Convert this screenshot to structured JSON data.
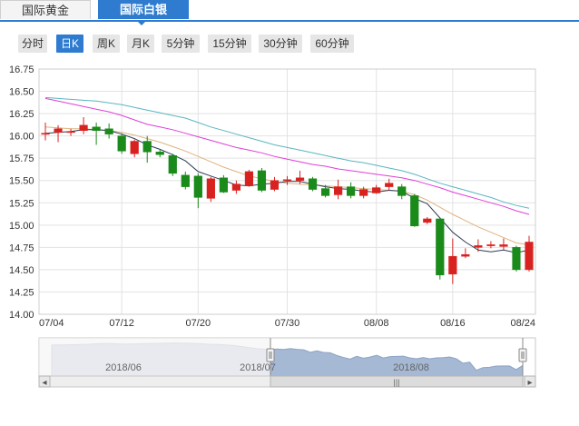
{
  "tabs": [
    {
      "label": "国际黄金",
      "active": false
    },
    {
      "label": "国际白银",
      "active": true
    }
  ],
  "periods": [
    {
      "label": "分时",
      "active": false
    },
    {
      "label": "日K",
      "active": true
    },
    {
      "label": "周K",
      "active": false
    },
    {
      "label": "月K",
      "active": false
    },
    {
      "label": "5分钟",
      "active": false
    },
    {
      "label": "15分钟",
      "active": false
    },
    {
      "label": "30分钟",
      "active": false
    },
    {
      "label": "60分钟",
      "active": false
    }
  ],
  "colors": {
    "up": "#d8221f",
    "down": "#1a8a1a",
    "ma5": "#2b3d57",
    "ma10": "#e0b27f",
    "ma20": "#e03fd8",
    "ma30": "#5ab6c0",
    "accent": "#2e7bcf"
  },
  "chart_data": {
    "type": "candlestick",
    "ylim": [
      14.0,
      16.75
    ],
    "y_ticks": [
      "16.75",
      "16.50",
      "16.25",
      "16.00",
      "15.75",
      "15.50",
      "15.25",
      "15.00",
      "14.75",
      "14.50",
      "14.25",
      "14.00"
    ],
    "x_ticks": [
      "07/04",
      "07/12",
      "07/20",
      "07/30",
      "08/08",
      "08/16",
      "08/24"
    ],
    "grid": true,
    "candles": [
      {
        "o": 16.02,
        "c": 16.03,
        "h": 16.15,
        "l": 15.95
      },
      {
        "o": 16.04,
        "c": 16.08,
        "h": 16.12,
        "l": 15.93
      },
      {
        "o": 16.04,
        "c": 16.05,
        "h": 16.08,
        "l": 16.0
      },
      {
        "o": 16.06,
        "c": 16.12,
        "h": 16.21,
        "l": 16.02
      },
      {
        "o": 16.1,
        "c": 16.06,
        "h": 16.15,
        "l": 15.9
      },
      {
        "o": 16.08,
        "c": 16.02,
        "h": 16.14,
        "l": 15.97
      },
      {
        "o": 16.0,
        "c": 15.83,
        "h": 16.03,
        "l": 15.8
      },
      {
        "o": 15.8,
        "c": 15.94,
        "h": 15.96,
        "l": 15.76
      },
      {
        "o": 15.94,
        "c": 15.82,
        "h": 16.0,
        "l": 15.7
      },
      {
        "o": 15.82,
        "c": 15.79,
        "h": 15.85,
        "l": 15.76
      },
      {
        "o": 15.78,
        "c": 15.58,
        "h": 15.8,
        "l": 15.55
      },
      {
        "o": 15.56,
        "c": 15.43,
        "h": 15.6,
        "l": 15.4
      },
      {
        "o": 15.55,
        "c": 15.31,
        "h": 15.58,
        "l": 15.19
      },
      {
        "o": 15.3,
        "c": 15.52,
        "h": 15.54,
        "l": 15.26
      },
      {
        "o": 15.53,
        "c": 15.37,
        "h": 15.56,
        "l": 15.36
      },
      {
        "o": 15.39,
        "c": 15.46,
        "h": 15.5,
        "l": 15.35
      },
      {
        "o": 15.44,
        "c": 15.6,
        "h": 15.62,
        "l": 15.43
      },
      {
        "o": 15.61,
        "c": 15.39,
        "h": 15.64,
        "l": 15.37
      },
      {
        "o": 15.4,
        "c": 15.5,
        "h": 15.54,
        "l": 15.38
      },
      {
        "o": 15.5,
        "c": 15.51,
        "h": 15.55,
        "l": 15.45
      },
      {
        "o": 15.5,
        "c": 15.53,
        "h": 15.61,
        "l": 15.46
      },
      {
        "o": 15.52,
        "c": 15.4,
        "h": 15.54,
        "l": 15.38
      },
      {
        "o": 15.41,
        "c": 15.33,
        "h": 15.45,
        "l": 15.31
      },
      {
        "o": 15.34,
        "c": 15.43,
        "h": 15.51,
        "l": 15.29
      },
      {
        "o": 15.43,
        "c": 15.33,
        "h": 15.48,
        "l": 15.3
      },
      {
        "o": 15.33,
        "c": 15.4,
        "h": 15.43,
        "l": 15.3
      },
      {
        "o": 15.36,
        "c": 15.42,
        "h": 15.45,
        "l": 15.35
      },
      {
        "o": 15.43,
        "c": 15.47,
        "h": 15.52,
        "l": 15.39
      },
      {
        "o": 15.43,
        "c": 15.33,
        "h": 15.46,
        "l": 15.29
      },
      {
        "o": 15.33,
        "c": 14.99,
        "h": 15.35,
        "l": 14.98
      },
      {
        "o": 15.03,
        "c": 15.07,
        "h": 15.09,
        "l": 15.01
      },
      {
        "o": 15.07,
        "c": 14.44,
        "h": 15.08,
        "l": 14.39
      },
      {
        "o": 14.45,
        "c": 14.65,
        "h": 14.85,
        "l": 14.34
      },
      {
        "o": 14.65,
        "c": 14.67,
        "h": 14.74,
        "l": 14.63
      },
      {
        "o": 14.75,
        "c": 14.77,
        "h": 14.84,
        "l": 14.7
      },
      {
        "o": 14.77,
        "c": 14.78,
        "h": 14.82,
        "l": 14.74
      },
      {
        "o": 14.76,
        "c": 14.78,
        "h": 14.85,
        "l": 14.72
      },
      {
        "o": 14.75,
        "c": 14.5,
        "h": 14.77,
        "l": 14.48
      },
      {
        "o": 14.5,
        "c": 14.81,
        "h": 14.88,
        "l": 14.48
      }
    ],
    "ma5": [
      16.03,
      16.04,
      16.05,
      16.07,
      16.07,
      16.06,
      16.02,
      15.97,
      15.9,
      15.85,
      15.79,
      15.72,
      15.6,
      15.55,
      15.5,
      15.45,
      15.44,
      15.46,
      15.47,
      15.49,
      15.49,
      15.46,
      15.43,
      15.41,
      15.4,
      15.38,
      15.37,
      15.39,
      15.38,
      15.3,
      15.24,
      15.08,
      14.92,
      14.81,
      14.72,
      14.7,
      14.72,
      14.69,
      14.72
    ],
    "ma10": [
      16.1,
      16.09,
      16.08,
      16.08,
      16.07,
      16.06,
      16.04,
      16.01,
      15.97,
      15.93,
      15.88,
      15.83,
      15.77,
      15.71,
      15.65,
      15.6,
      15.55,
      15.52,
      15.49,
      15.47,
      15.46,
      15.45,
      15.44,
      15.43,
      15.42,
      15.41,
      15.4,
      15.39,
      15.38,
      15.34,
      15.28,
      15.2,
      15.12,
      15.05,
      14.98,
      14.92,
      14.86,
      14.8,
      14.78
    ],
    "ma20": [
      16.42,
      16.39,
      16.36,
      16.33,
      16.3,
      16.27,
      16.23,
      16.18,
      16.13,
      16.1,
      16.07,
      16.03,
      15.99,
      15.95,
      15.91,
      15.87,
      15.84,
      15.81,
      15.77,
      15.74,
      15.71,
      15.68,
      15.66,
      15.63,
      15.61,
      15.59,
      15.57,
      15.55,
      15.53,
      15.5,
      15.46,
      15.42,
      15.37,
      15.33,
      15.29,
      15.25,
      15.21,
      15.16,
      15.12
    ],
    "ma30": [
      16.43,
      16.42,
      16.41,
      16.4,
      16.39,
      16.37,
      16.35,
      16.32,
      16.29,
      16.26,
      16.23,
      16.2,
      16.15,
      16.1,
      16.06,
      16.02,
      15.98,
      15.94,
      15.9,
      15.87,
      15.84,
      15.81,
      15.78,
      15.75,
      15.72,
      15.7,
      15.67,
      15.64,
      15.61,
      15.57,
      15.52,
      15.47,
      15.43,
      15.39,
      15.35,
      15.31,
      15.26,
      15.22,
      15.19
    ]
  },
  "navigator": {
    "labels": [
      "2018/06",
      "2018/07",
      "2018/08"
    ],
    "scroll_glyph": "|||",
    "left_arrow": "◂",
    "right_arrow": "▸"
  }
}
